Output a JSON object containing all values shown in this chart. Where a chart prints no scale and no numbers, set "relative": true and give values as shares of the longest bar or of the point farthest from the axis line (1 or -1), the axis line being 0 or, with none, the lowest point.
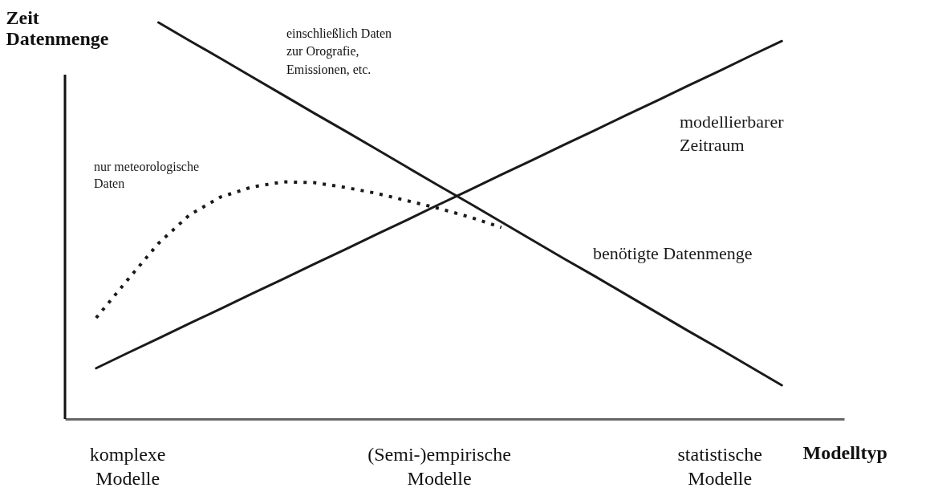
{
  "chart_data": {
    "type": "line",
    "relative": true,
    "xlabel": "Modelltyp",
    "ylabel": "Zeit Datenmenge",
    "categories": [
      null,
      "komplexe Modelle",
      null,
      null,
      null,
      null,
      null,
      null,
      null,
      null,
      null,
      "(Semi-)empirische Modelle",
      null,
      null,
      null,
      null,
      null,
      null,
      null,
      null,
      "statistische Modelle",
      null,
      null,
      null
    ],
    "annotations": [
      "einschließlich Daten zur Orografie, Emissionen, etc."
    ],
    "series": [
      {
        "name": "modellierbarer Zeitraum",
        "color": "#1a1a1a",
        "line_style": "solid",
        "values": [
          0.128,
          0.166,
          0.203,
          0.241,
          0.278,
          0.316,
          0.353,
          0.391,
          0.428,
          0.466,
          0.503,
          0.541,
          0.578,
          0.616,
          0.653,
          0.691,
          0.728,
          0.766,
          0.803,
          0.841,
          0.878,
          0.916,
          0.953,
          null
        ]
      },
      {
        "name": "benötigte Datenmenge",
        "color": "#1a1a1a",
        "line_style": "solid",
        "values": [
          null,
          null,
          1,
          0.954,
          0.909,
          0.863,
          0.817,
          0.771,
          0.726,
          0.68,
          0.634,
          0.588,
          0.543,
          0.497,
          0.451,
          0.405,
          0.36,
          0.314,
          0.268,
          0.222,
          0.177,
          0.131,
          0.085,
          null
        ]
      },
      {
        "name": "nur meteorologische Daten",
        "color": "#1a1a1a",
        "line_style": "dotted",
        "values": [
          0.255,
          0.35,
          0.443,
          0.515,
          0.56,
          0.585,
          0.598,
          0.596,
          0.584,
          0.569,
          0.55,
          0.531,
          0.509,
          0.483,
          null,
          null,
          null,
          null,
          null,
          null,
          null,
          null,
          null,
          null
        ]
      }
    ]
  }
}
